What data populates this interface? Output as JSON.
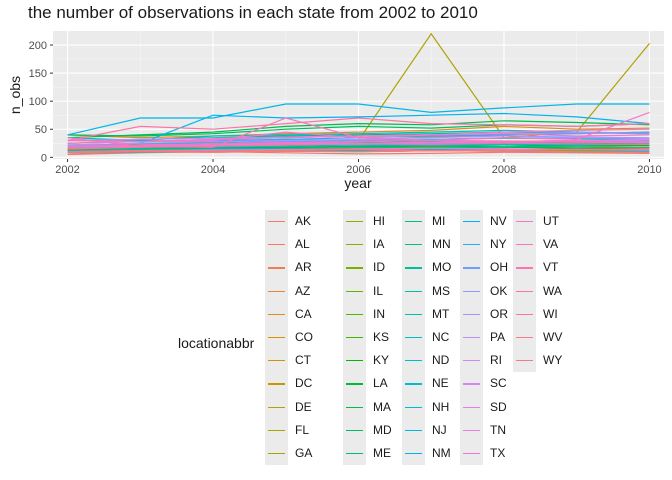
{
  "chart_data": {
    "type": "line",
    "title": "the number of observations in each state from 2002 to 2010",
    "xlabel": "year",
    "ylabel": "n_obs",
    "xlim": [
      2001.8,
      2010.2
    ],
    "ylim": [
      -3,
      225
    ],
    "xticks": [
      2002,
      2004,
      2006,
      2008,
      2010
    ],
    "yticks": [
      0,
      50,
      100,
      150,
      200
    ],
    "grid": true,
    "legend": {
      "title": "locationabbr",
      "position": "bottom"
    },
    "x": [
      2002,
      2003,
      2004,
      2005,
      2006,
      2007,
      2008,
      2009,
      2010
    ],
    "series": [
      {
        "name": "AK",
        "color": "#F8766D",
        "values": [
          5,
          8,
          10,
          8,
          6,
          7,
          9,
          8,
          7
        ]
      },
      {
        "name": "AL",
        "color": "#F47A5E",
        "values": [
          15,
          12,
          14,
          13,
          16,
          18,
          15,
          14,
          16
        ]
      },
      {
        "name": "AR",
        "color": "#EE7F4C",
        "values": [
          10,
          12,
          11,
          14,
          13,
          15,
          12,
          11,
          13
        ]
      },
      {
        "name": "AZ",
        "color": "#E7843A",
        "values": [
          20,
          18,
          22,
          25,
          24,
          26,
          23,
          22,
          25
        ]
      },
      {
        "name": "CA",
        "color": "#E08A1F",
        "values": [
          40,
          35,
          38,
          42,
          45,
          48,
          55,
          50,
          52
        ]
      },
      {
        "name": "CO",
        "color": "#D88F00",
        "values": [
          30,
          28,
          32,
          35,
          38,
          36,
          40,
          42,
          45
        ]
      },
      {
        "name": "CT",
        "color": "#CF9400",
        "values": [
          18,
          20,
          22,
          21,
          24,
          23,
          25,
          26,
          24
        ]
      },
      {
        "name": "DC",
        "color": "#C59800",
        "values": [
          8,
          10,
          9,
          11,
          10,
          12,
          11,
          10,
          9
        ]
      },
      {
        "name": "DE",
        "color": "#BB9D00",
        "values": [
          12,
          14,
          13,
          15,
          14,
          16,
          15,
          14,
          13
        ]
      },
      {
        "name": "FL",
        "color": "#B0A100",
        "values": [
          25,
          30,
          28,
          32,
          30,
          220,
          35,
          45,
          203
        ]
      },
      {
        "name": "GA",
        "color": "#A4A500",
        "values": [
          20,
          22,
          24,
          23,
          25,
          27,
          26,
          28,
          30
        ]
      },
      {
        "name": "HI",
        "color": "#97A800",
        "values": [
          10,
          12,
          15,
          18,
          20,
          22,
          25,
          24,
          26
        ]
      },
      {
        "name": "IA",
        "color": "#89AC00",
        "values": [
          12,
          14,
          15,
          16,
          18,
          17,
          19,
          20,
          18
        ]
      },
      {
        "name": "ID",
        "color": "#7AAF00",
        "values": [
          8,
          9,
          10,
          12,
          11,
          13,
          14,
          12,
          13
        ]
      },
      {
        "name": "IL",
        "color": "#69B100",
        "values": [
          15,
          14,
          16,
          18,
          17,
          19,
          20,
          22,
          21
        ]
      },
      {
        "name": "IN",
        "color": "#55B400",
        "values": [
          14,
          15,
          16,
          17,
          18,
          20,
          19,
          21,
          22
        ]
      },
      {
        "name": "KS",
        "color": "#3CB600",
        "values": [
          18,
          17,
          19,
          22,
          24,
          23,
          26,
          25,
          24
        ]
      },
      {
        "name": "KY",
        "color": "#00B800",
        "values": [
          12,
          13,
          14,
          16,
          15,
          17,
          18,
          16,
          17
        ]
      },
      {
        "name": "LA",
        "color": "#00BA38",
        "values": [
          15,
          16,
          17,
          18,
          19,
          21,
          20,
          22,
          21
        ]
      },
      {
        "name": "MA",
        "color": "#00BB4E",
        "values": [
          35,
          40,
          45,
          55,
          60,
          58,
          65,
          62,
          58
        ]
      },
      {
        "name": "MD",
        "color": "#00BC60",
        "values": [
          40,
          38,
          42,
          50,
          55,
          52,
          58,
          55,
          60
        ]
      },
      {
        "name": "ME",
        "color": "#00BD70",
        "values": [
          20,
          22,
          25,
          24,
          26,
          28,
          27,
          26,
          25
        ]
      },
      {
        "name": "MI",
        "color": "#00BE7F",
        "values": [
          30,
          32,
          35,
          38,
          40,
          42,
          45,
          44,
          42
        ]
      },
      {
        "name": "MN",
        "color": "#00BF8C",
        "values": [
          22,
          24,
          26,
          28,
          30,
          32,
          34,
          33,
          32
        ]
      },
      {
        "name": "MO",
        "color": "#00BF99",
        "values": [
          18,
          20,
          22,
          25,
          24,
          26,
          25,
          24,
          23
        ]
      },
      {
        "name": "MS",
        "color": "#00C0A6",
        "values": [
          12,
          14,
          15,
          16,
          18,
          17,
          19,
          18,
          17
        ]
      },
      {
        "name": "MT",
        "color": "#00C0B2",
        "values": [
          10,
          11,
          12,
          13,
          12,
          14,
          13,
          15,
          14
        ]
      },
      {
        "name": "NC",
        "color": "#00BFBE",
        "values": [
          35,
          30,
          38,
          40,
          42,
          45,
          48,
          45,
          43
        ]
      },
      {
        "name": "ND",
        "color": "#00BEC9",
        "values": [
          8,
          9,
          10,
          11,
          10,
          12,
          11,
          10,
          11
        ]
      },
      {
        "name": "NE",
        "color": "#00BCD4",
        "values": [
          15,
          17,
          18,
          20,
          22,
          21,
          23,
          22,
          24
        ]
      },
      {
        "name": "NH",
        "color": "#00BADE",
        "values": [
          20,
          22,
          24,
          26,
          25,
          27,
          28,
          30,
          29
        ]
      },
      {
        "name": "NJ",
        "color": "#00B7E8",
        "values": [
          40,
          70,
          70,
          95,
          95,
          80,
          88,
          95,
          95
        ]
      },
      {
        "name": "NM",
        "color": "#00B4F0",
        "values": [
          20,
          25,
          75,
          70,
          72,
          75,
          78,
          72,
          60
        ]
      },
      {
        "name": "NV",
        "color": "#00B0F6",
        "values": [
          15,
          18,
          20,
          22,
          25,
          24,
          26,
          28,
          27
        ]
      },
      {
        "name": "NY",
        "color": "#26ABFC",
        "values": [
          25,
          28,
          30,
          32,
          35,
          38,
          40,
          42,
          45
        ]
      },
      {
        "name": "OH",
        "color": "#6AA0FF",
        "values": [
          20,
          22,
          25,
          28,
          30,
          32,
          35,
          34,
          33
        ]
      },
      {
        "name": "OK",
        "color": "#8C9AFF",
        "values": [
          18,
          20,
          22,
          24,
          23,
          25,
          26,
          28,
          27
        ]
      },
      {
        "name": "OR",
        "color": "#A695FF",
        "values": [
          22,
          25,
          28,
          30,
          32,
          35,
          38,
          36,
          35
        ]
      },
      {
        "name": "PA",
        "color": "#BA8FFC",
        "values": [
          30,
          32,
          34,
          36,
          38,
          40,
          42,
          44,
          43
        ]
      },
      {
        "name": "RI",
        "color": "#CB89F8",
        "values": [
          20,
          22,
          24,
          26,
          25,
          27,
          28,
          30,
          29
        ]
      },
      {
        "name": "SC",
        "color": "#D884F2",
        "values": [
          15,
          18,
          20,
          22,
          24,
          26,
          28,
          27,
          26
        ]
      },
      {
        "name": "SD",
        "color": "#E37FEB",
        "values": [
          10,
          12,
          13,
          14,
          15,
          16,
          15,
          14,
          13
        ]
      },
      {
        "name": "TN",
        "color": "#EB7BE2",
        "values": [
          18,
          20,
          22,
          25,
          24,
          26,
          28,
          30,
          32
        ]
      },
      {
        "name": "TX",
        "color": "#F278D8",
        "values": [
          30,
          28,
          32,
          35,
          38,
          40,
          45,
          48,
          50
        ]
      },
      {
        "name": "UT",
        "color": "#F776CD",
        "values": [
          25,
          28,
          30,
          45,
          35,
          40,
          42,
          38,
          40
        ]
      },
      {
        "name": "VA",
        "color": "#FA75C1",
        "values": [
          35,
          20,
          18,
          70,
          35,
          30,
          35,
          32,
          80
        ]
      },
      {
        "name": "VT",
        "color": "#FC74B4",
        "values": [
          20,
          22,
          24,
          26,
          28,
          30,
          29,
          28,
          27
        ]
      },
      {
        "name": "WA",
        "color": "#FC75A6",
        "values": [
          30,
          55,
          50,
          60,
          70,
          60,
          58,
          55,
          60
        ]
      },
      {
        "name": "WI",
        "color": "#FC7698",
        "values": [
          15,
          18,
          20,
          22,
          24,
          23,
          25,
          24,
          23
        ]
      },
      {
        "name": "WV",
        "color": "#FA7889",
        "values": [
          10,
          12,
          11,
          13,
          14,
          12,
          13,
          14,
          15
        ]
      },
      {
        "name": "WY",
        "color": "#F87A7A",
        "values": [
          8,
          10,
          9,
          11,
          10,
          12,
          11,
          10,
          9
        ]
      }
    ]
  }
}
